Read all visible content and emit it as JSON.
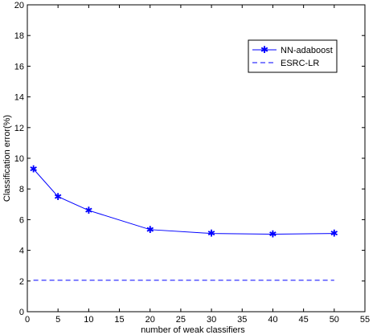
{
  "chart_data": {
    "type": "line",
    "xlabel": "number of weak classifiers",
    "ylabel": "Classification error(%)",
    "xlim": [
      0,
      55
    ],
    "ylim": [
      0,
      20
    ],
    "xticks": [
      0,
      5,
      10,
      15,
      20,
      25,
      30,
      35,
      40,
      45,
      50,
      55
    ],
    "yticks": [
      0,
      2,
      4,
      6,
      8,
      10,
      12,
      14,
      16,
      18,
      20
    ],
    "grid": false,
    "legend_position": "top-right",
    "series": [
      {
        "name": "NN-adaboost",
        "style": "solid-star",
        "color": "#0000ff",
        "x": [
          1,
          5,
          10,
          20,
          30,
          40,
          50
        ],
        "y": [
          9.3,
          7.5,
          6.6,
          5.35,
          5.1,
          5.05,
          5.1
        ]
      },
      {
        "name": "ESRC-LR",
        "style": "dashed",
        "color": "#0000ff",
        "x": [
          1,
          50
        ],
        "y": [
          2.05,
          2.05
        ]
      }
    ]
  }
}
